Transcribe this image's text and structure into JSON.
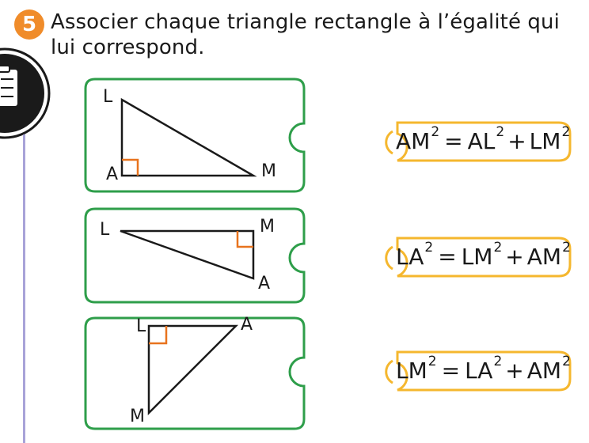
{
  "exercise": {
    "number": "5",
    "instruction": "Associer chaque triangle rectangle à l’égalité qui lui correspond."
  },
  "triangles": [
    {
      "vertices": {
        "top": "L",
        "right_angle": "A",
        "right": "M"
      }
    },
    {
      "vertices": {
        "left": "L",
        "right_angle": "M",
        "bottom": "A"
      }
    },
    {
      "vertices": {
        "right_angle": "L",
        "right": "A",
        "bottom": "M"
      }
    }
  ],
  "equations": [
    {
      "lhs": "AM",
      "lhs_exp": "2",
      "eq": "=",
      "t1": "AL",
      "t1_exp": "2",
      "plus": "+",
      "t2": "LM",
      "t2_exp": "2"
    },
    {
      "lhs": "LA",
      "lhs_exp": "2",
      "eq": "=",
      "t1": "LM",
      "t1_exp": "2",
      "plus": "+",
      "t2": "AM",
      "t2_exp": "2"
    },
    {
      "lhs": "LM",
      "lhs_exp": "2",
      "eq": "=",
      "t1": "LA",
      "t1_exp": "2",
      "plus": "+",
      "t2": "AM",
      "t2_exp": "2"
    }
  ],
  "colors": {
    "card_border": "#2e9e4a",
    "tab_border": "#f5b72e",
    "right_angle": "#e8731e",
    "badge": "#f08c2a",
    "margin_line": "#a8a3d8"
  },
  "icons": [
    "checklist-icon"
  ]
}
